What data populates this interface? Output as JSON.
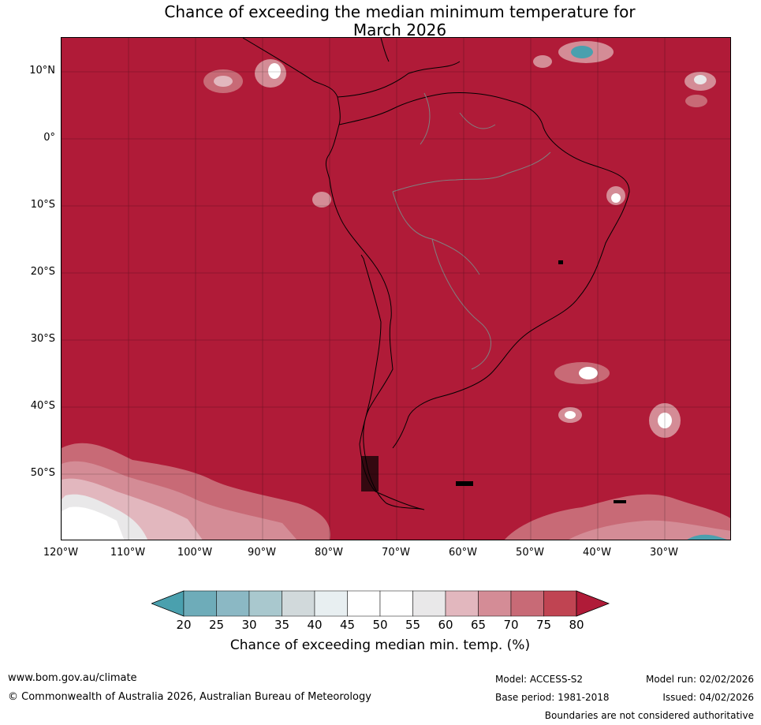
{
  "title": {
    "line1": "Chance of exceeding the median minimum temperature for",
    "line2": "March 2026"
  },
  "map": {
    "lat_labels": [
      "10°N",
      "0°",
      "10°S",
      "20°S",
      "30°S",
      "40°S",
      "50°S"
    ],
    "lon_labels": [
      "120°W",
      "110°W",
      "100°W",
      "90°W",
      "80°W",
      "70°W",
      "60°W",
      "50°W",
      "40°W",
      "30°W"
    ]
  },
  "colorbar": {
    "ticks": [
      "20",
      "25",
      "30",
      "35",
      "40",
      "45",
      "50",
      "55",
      "60",
      "65",
      "70",
      "75",
      "80"
    ],
    "colors": [
      "#4aa0ae",
      "#6eacb9",
      "#8bb8c4",
      "#a9c8ce",
      "#d1d9db",
      "#e8eff1",
      "#ffffff",
      "#ffffff",
      "#e9e8e9",
      "#e2b7be",
      "#d48c96",
      "#c86a76",
      "#c04452",
      "#b01b38"
    ],
    "label": "Chance of exceeding median min. temp. (%)"
  },
  "footer": {
    "website": "www.bom.gov.au/climate",
    "copyright": "© Commonwealth of Australia 2026, Australian Bureau of Meteorology",
    "model": "Model: ACCESS-S2",
    "base_period": "Base period: 1981-2018",
    "model_run": "Model run: 02/02/2026",
    "issued": "Issued: 04/02/2026",
    "disclaimer": "Boundaries are not considered authoritative"
  }
}
